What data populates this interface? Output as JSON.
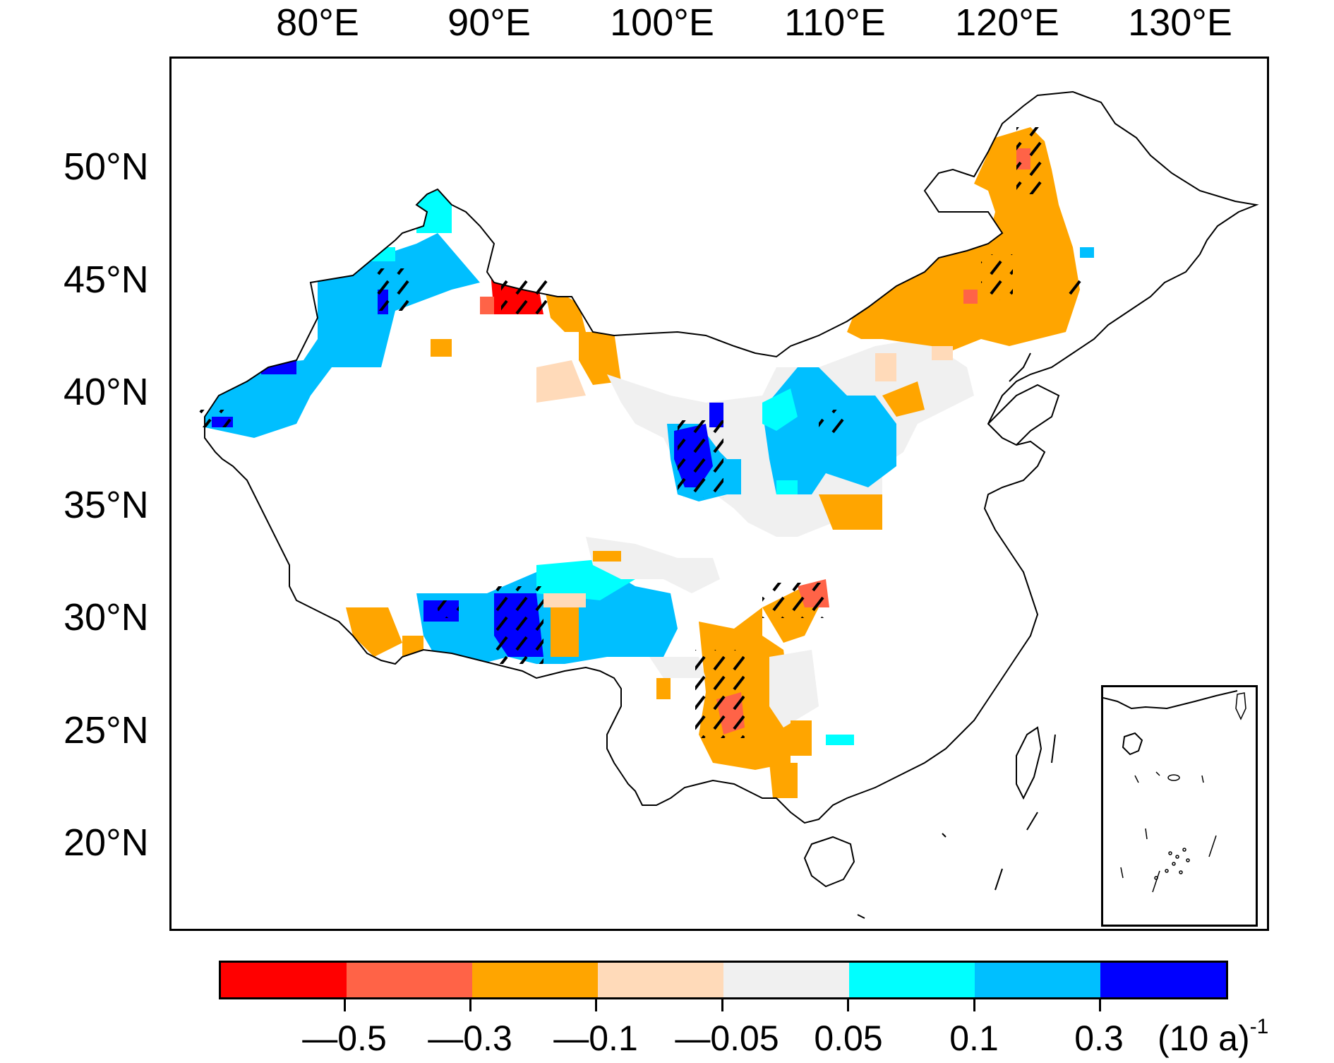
{
  "map": {
    "lon_labels": [
      "80°E",
      "90°E",
      "100°E",
      "110°E",
      "120°E",
      "130°E"
    ],
    "lat_labels": [
      "50°N",
      "45°N",
      "40°N",
      "35°N",
      "30°N",
      "25°N",
      "20°N"
    ]
  },
  "legend": {
    "colors": [
      "#ff0000",
      "#ff6347",
      "#ffa500",
      "#ffdab9",
      "#f0f0f0",
      "#00ffff",
      "#00bfff",
      "#0000ff"
    ],
    "tick_labels": [
      "—0.5",
      "—0.3",
      "—0.1",
      "—0.05",
      "0.05",
      "0.1",
      "0.3"
    ],
    "unit_base": "(10 a)",
    "unit_exponent": "-1"
  },
  "patch_categories": {
    "strong_negative": "#ff0000",
    "negative": "#ff6347",
    "moderate_negative": "#ffa500",
    "weak_negative": "#ffdab9",
    "near_zero": "#f0f0f0",
    "weak_positive": "#00ffff",
    "moderate_positive": "#00bfff",
    "strong_positive": "#0000ff"
  }
}
